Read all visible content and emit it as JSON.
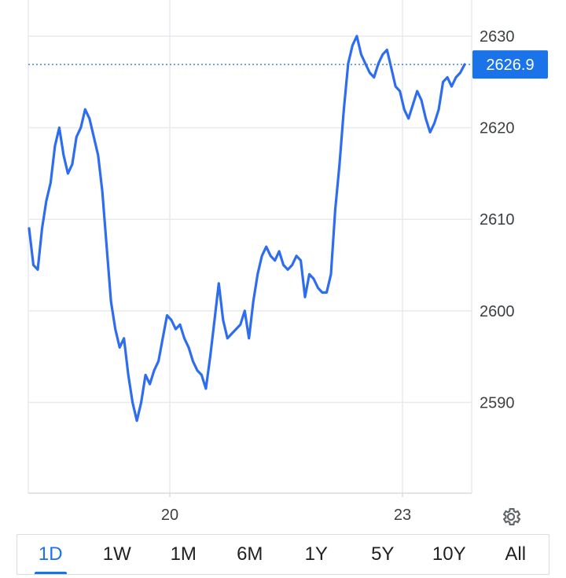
{
  "chart_data": {
    "type": "line",
    "series": [
      {
        "values": [
          2609,
          2605,
          2604.5,
          2609,
          2612,
          2614,
          2618,
          2620,
          2617,
          2615,
          2616,
          2619,
          2620,
          2622,
          2621,
          2619,
          2617,
          2613,
          2607,
          2601,
          2598,
          2596,
          2597,
          2593,
          2590,
          2588,
          2590,
          2593,
          2592,
          2593.5,
          2594.5,
          2597,
          2599.5,
          2599,
          2598,
          2598.5,
          2597,
          2596,
          2594.5,
          2593.5,
          2593,
          2591.5,
          2595,
          2599,
          2603,
          2599,
          2597,
          2597.5,
          2598,
          2598.5,
          2600,
          2597,
          2601,
          2604,
          2606,
          2607,
          2606,
          2605.5,
          2606.5,
          2605,
          2604.5,
          2605,
          2606,
          2605.5,
          2601.5,
          2604,
          2603.5,
          2602.5,
          2602,
          2602,
          2604,
          2611,
          2616,
          2622,
          2627,
          2629,
          2630,
          2628,
          2627,
          2626,
          2625.5,
          2627,
          2628,
          2628.5,
          2626.5,
          2624.5,
          2624,
          2622,
          2621,
          2622.5,
          2624,
          2623,
          2621,
          2619.5,
          2620.5,
          2622,
          2625,
          2625.5,
          2624.5,
          2625.5,
          2626,
          2626.9
        ]
      }
    ],
    "x_tick_labels": [
      "20",
      "23"
    ],
    "ylim": [
      2580,
      2632
    ],
    "y_ticks": [
      2630,
      2620,
      2610,
      2600,
      2590
    ],
    "last_value": 2626.9,
    "last_value_label": "2626.9",
    "grid": true,
    "line_color": "#2f6df0",
    "tag_color": "#1a73e8"
  },
  "range_tabs": {
    "items": [
      "1D",
      "1W",
      "1M",
      "6M",
      "1Y",
      "5Y",
      "10Y",
      "All"
    ],
    "active": "1D"
  },
  "settings_icon": "gear-icon"
}
